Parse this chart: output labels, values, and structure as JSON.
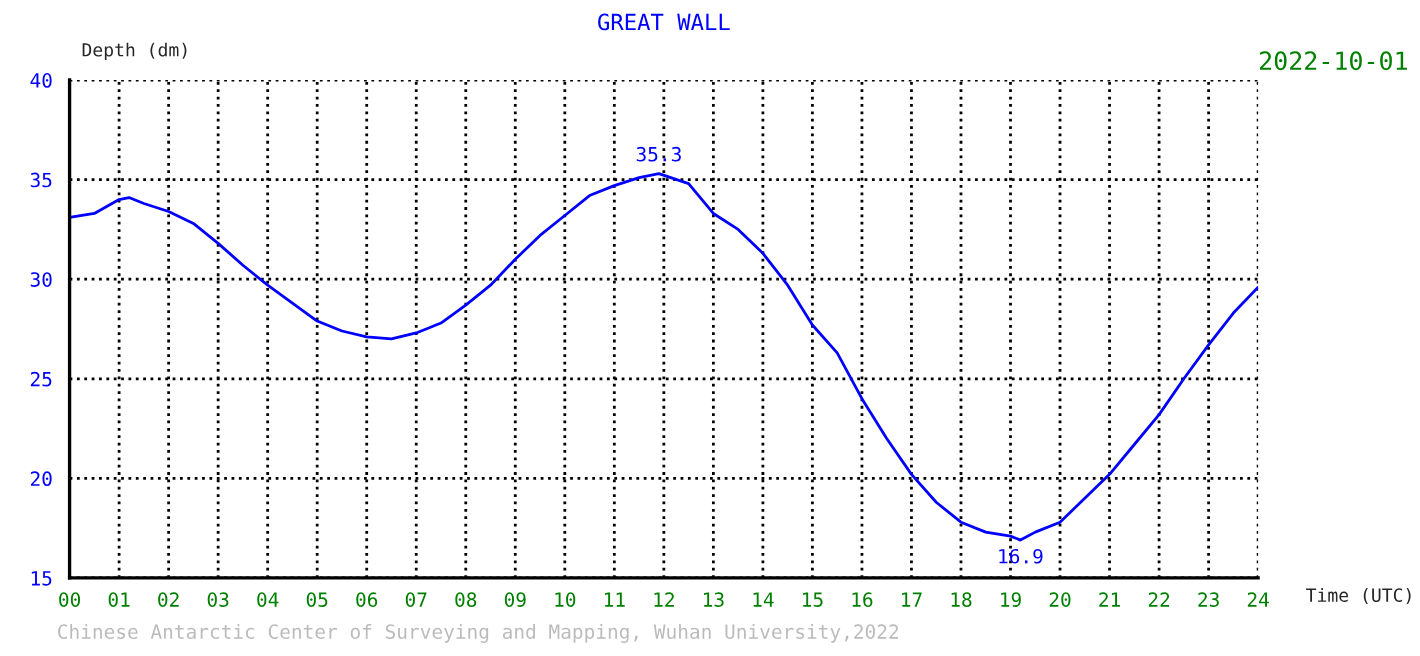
{
  "chart_data": {
    "type": "line",
    "title": "GREAT WALL",
    "subtitle": "2022-10-01",
    "xlabel": "Time (UTC)",
    "ylabel": "Depth (dm)",
    "x": [
      0,
      0.5,
      1,
      1.2,
      1.5,
      2,
      2.5,
      3,
      3.5,
      4,
      4.5,
      5,
      5.5,
      6,
      6.5,
      7,
      7.5,
      8,
      8.5,
      9,
      9.5,
      10,
      10.5,
      11,
      11.5,
      11.9,
      12.5,
      13,
      13.5,
      14,
      14.5,
      15,
      15.5,
      16,
      16.5,
      17,
      17.5,
      18,
      18.5,
      19,
      19.2,
      19.5,
      20,
      20.5,
      21,
      21.5,
      22,
      22.5,
      23,
      23.5,
      24
    ],
    "series": [
      {
        "color": "#0000ff",
        "values": [
          33.1,
          33.3,
          34.0,
          34.1,
          33.8,
          33.4,
          32.8,
          31.8,
          30.7,
          29.7,
          28.8,
          27.9,
          27.4,
          27.1,
          27.0,
          27.3,
          27.8,
          28.7,
          29.7,
          31.0,
          32.2,
          33.2,
          34.2,
          34.7,
          35.1,
          35.3,
          34.8,
          33.3,
          32.5,
          31.3,
          29.7,
          27.7,
          26.3,
          24.0,
          22.0,
          20.2,
          18.8,
          17.8,
          17.3,
          17.1,
          16.9,
          17.3,
          17.8,
          19.0,
          20.2,
          21.7,
          23.2,
          25.0,
          26.7,
          28.3,
          29.6
        ]
      }
    ],
    "annotations": [
      {
        "text": "35.3",
        "x": 11.9,
        "y": 35.3
      },
      {
        "text": "16.9",
        "x": 19.2,
        "y": 16.9
      },
      "Chinese Antarctic Center of Surveying and Mapping, Wuhan University,2022"
    ],
    "xlim": [
      0,
      24
    ],
    "ylim": [
      15,
      40
    ],
    "xticks": [
      {
        "value": 0,
        "label": "00"
      },
      {
        "value": 1,
        "label": "01"
      },
      {
        "value": 2,
        "label": "02"
      },
      {
        "value": 3,
        "label": "03"
      },
      {
        "value": 4,
        "label": "04"
      },
      {
        "value": 5,
        "label": "05"
      },
      {
        "value": 6,
        "label": "06"
      },
      {
        "value": 7,
        "label": "07"
      },
      {
        "value": 8,
        "label": "08"
      },
      {
        "value": 9,
        "label": "09"
      },
      10,
      11,
      12,
      13,
      14,
      15,
      16,
      17,
      18,
      19,
      20,
      21,
      22,
      23,
      24
    ],
    "yticks": [
      15,
      20,
      25,
      30,
      35,
      40
    ],
    "grid": true,
    "line_style": "solid",
    "marker": "none"
  }
}
